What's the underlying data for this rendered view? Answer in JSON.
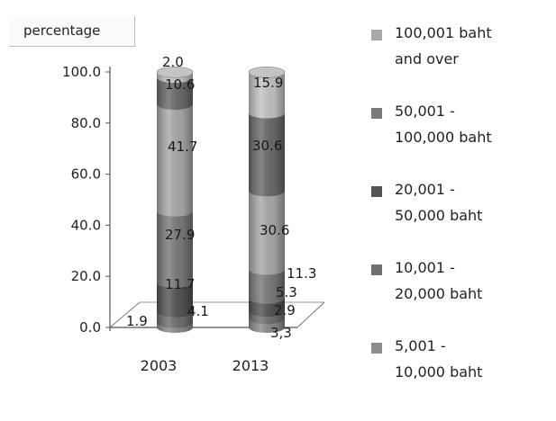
{
  "chart_data": {
    "type": "bar",
    "stacked": true,
    "style": "3d-cylinder",
    "title": "",
    "ylabel": "percentage",
    "xlabel": "",
    "ylim": [
      0,
      100
    ],
    "yticks": [
      "0.0",
      "20.0",
      "40.0",
      "60.0",
      "80.0",
      "100.0"
    ],
    "categories": [
      "2003",
      "2013"
    ],
    "legend_position": "right",
    "series": [
      {
        "name": "5,001    -\n10,000 baht",
        "color": "#8c8c8c",
        "values": [
          1.9,
          3.3
        ],
        "labels": [
          "1.9",
          "3,3"
        ]
      },
      {
        "name": "10,001    -\n20,000 baht",
        "color": "#6f6f6f",
        "values": [
          4.1,
          2.9
        ],
        "labels": [
          "4.1",
          "2.9"
        ]
      },
      {
        "name": "20,001    -\n50,000 baht",
        "color": "#545454",
        "values": [
          11.7,
          5.3
        ],
        "labels": [
          "11.7",
          "5.3"
        ]
      },
      {
        "name": "50,001    -\n100,000 baht",
        "color": "#7a7a7a",
        "values": [
          27.9,
          11.3
        ],
        "labels": [
          "27.9",
          "11.3"
        ]
      },
      {
        "name": "100,001  baht\nand over",
        "color": "#a9a9a9",
        "values": [
          41.7,
          30.6
        ],
        "labels": [
          "41.7",
          "30.6"
        ]
      },
      {
        "name": "",
        "color": "#6a6a6a",
        "values": [
          10.6,
          30.6
        ],
        "labels": [
          "10.6",
          "30.6"
        ]
      },
      {
        "name": "",
        "color": "#c4c4c4",
        "values": [
          2.0,
          15.9
        ],
        "labels": [
          "2.0",
          "15.9"
        ]
      }
    ]
  }
}
